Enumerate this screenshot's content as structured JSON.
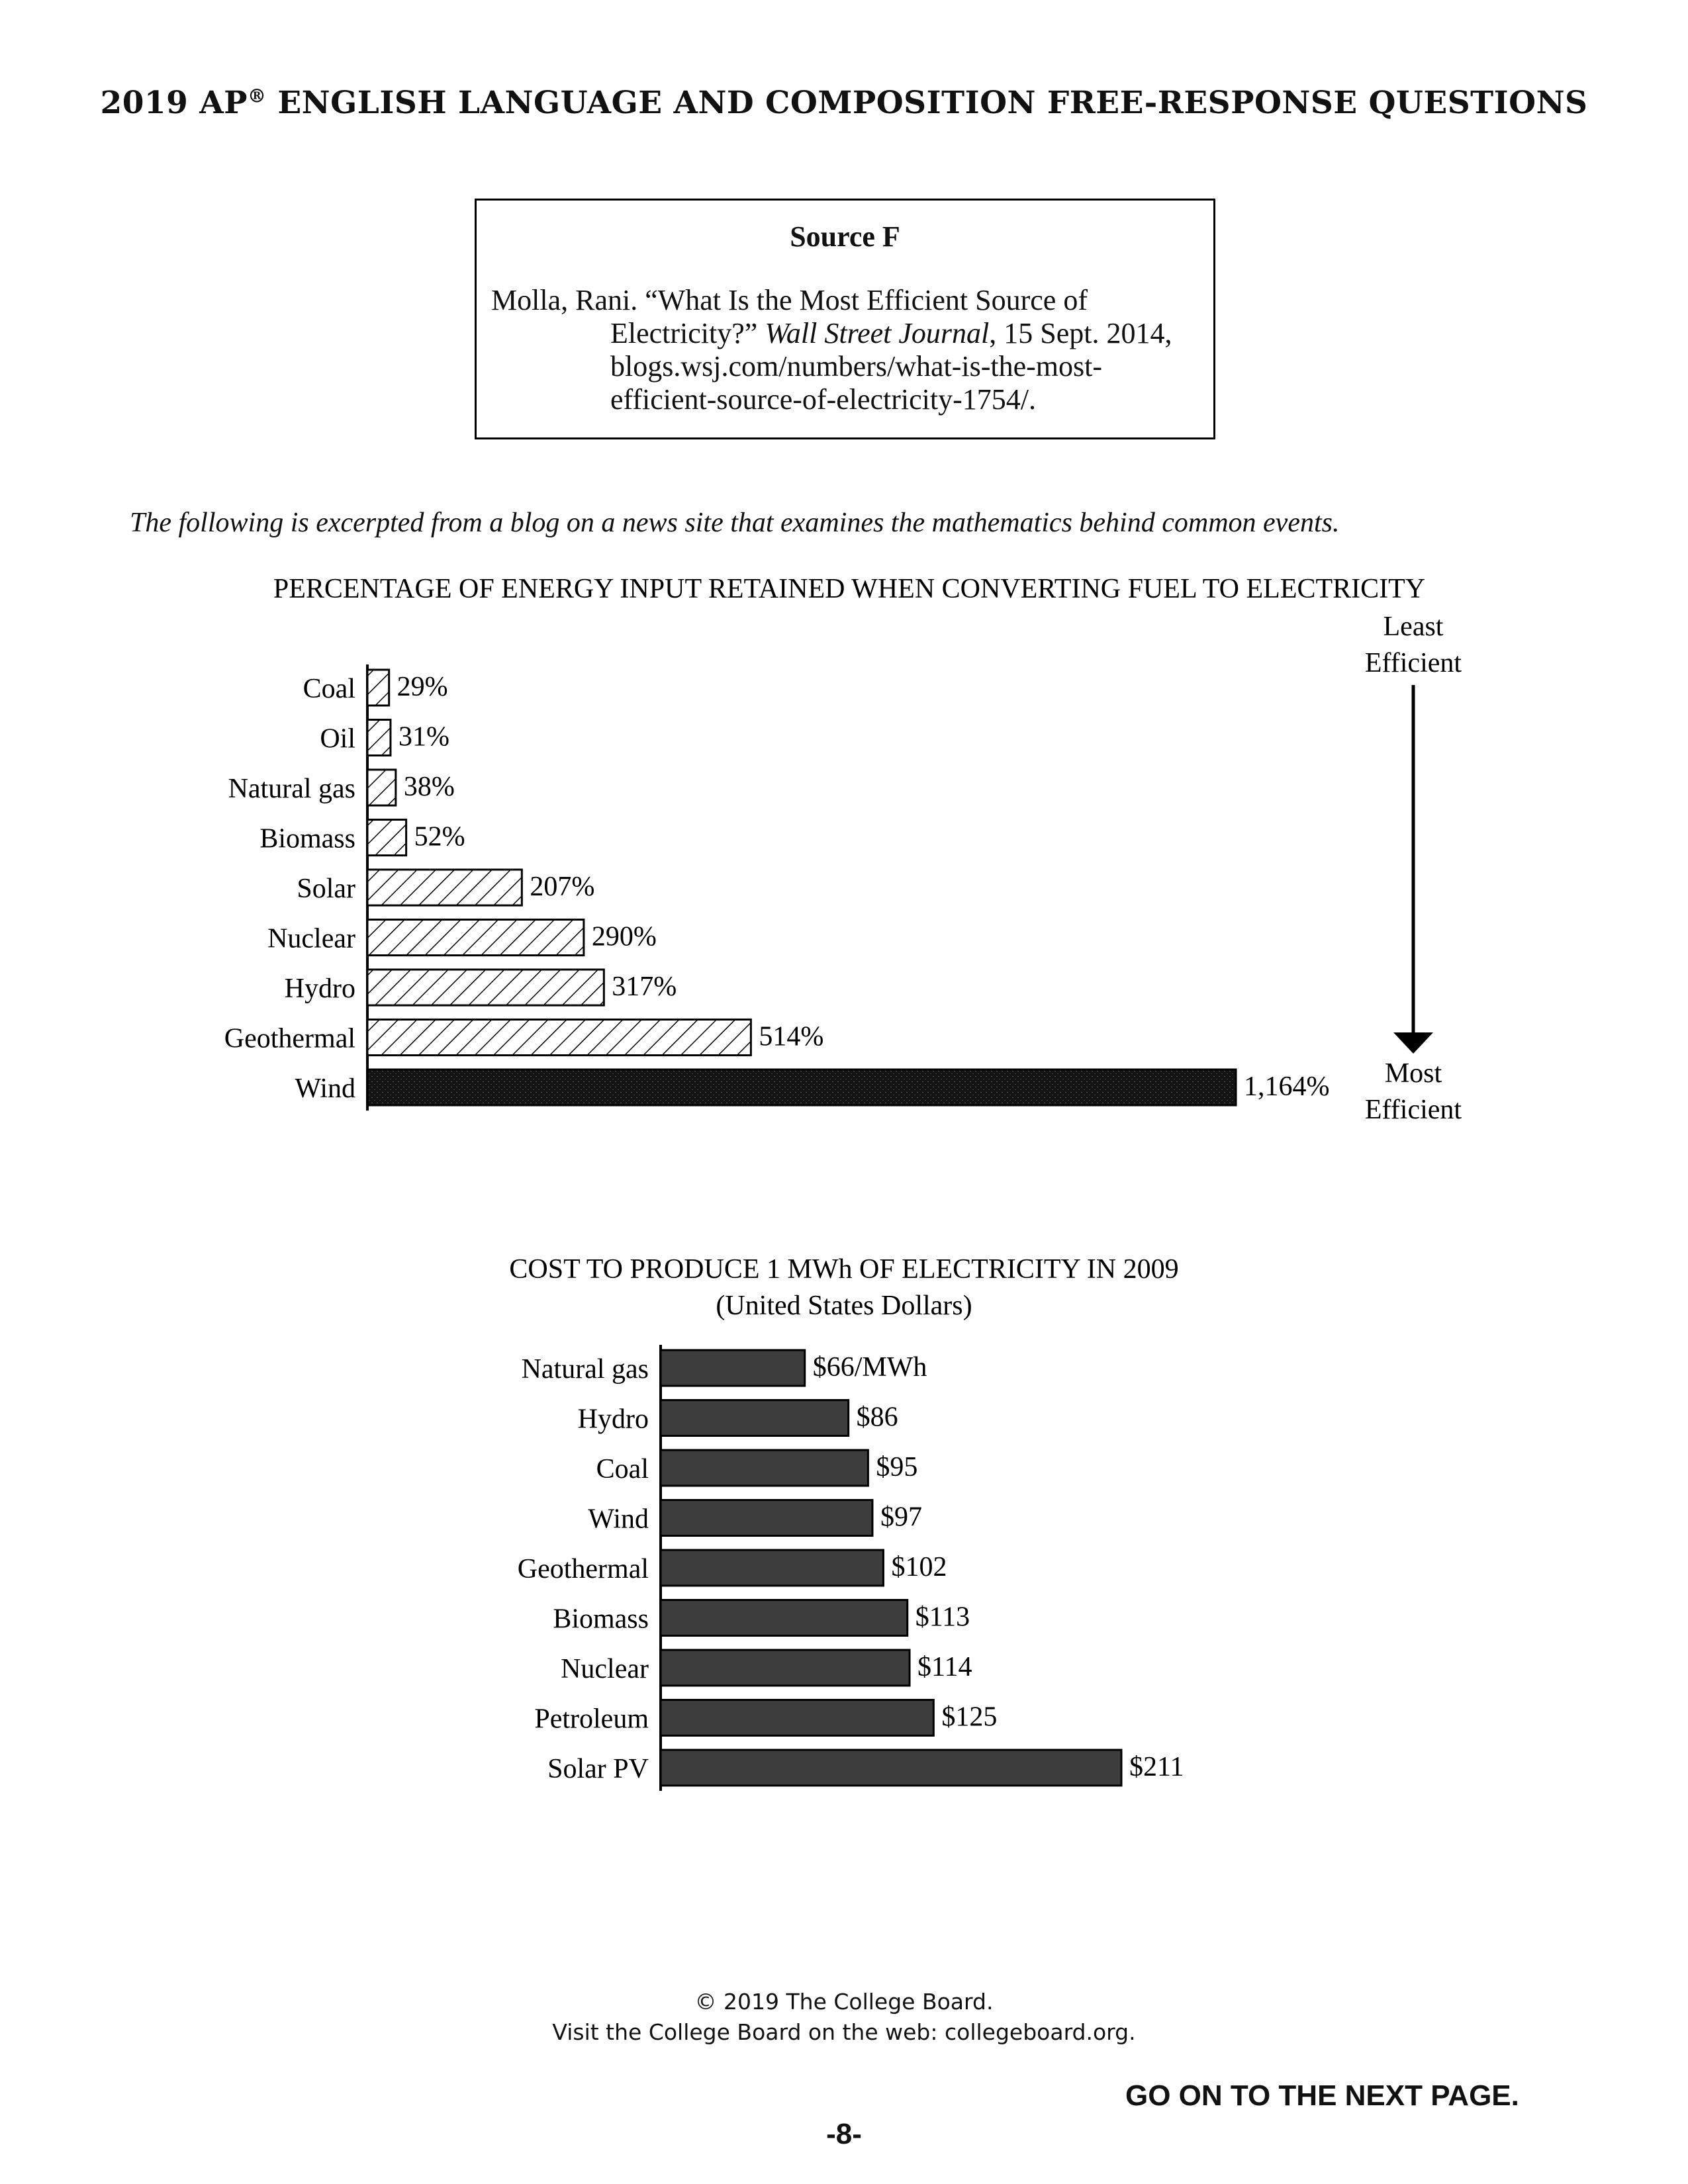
{
  "header": {
    "title_prefix": "2019 AP",
    "title_reg": "®",
    "title_rest": " ENGLISH LANGUAGE AND COMPOSITION FREE-RESPONSE QUESTIONS"
  },
  "source": {
    "title": "Source F",
    "line1": "Molla, Rani. “What Is the Most Efficient Source of",
    "line2_a": "Electricity?” ",
    "line2_italic": "Wall Street Journal",
    "line2_b": ", 15 Sept. 2014,",
    "line3": "blogs.wsj.com/numbers/what-is-the-most-",
    "line4": "efficient-source-of-electricity-1754/."
  },
  "intro": "The following is excerpted from a blog on a news site that examines the mathematics behind common events.",
  "chart_data": [
    {
      "type": "bar",
      "title": "PERCENTAGE OF ENERGY INPUT RETAINED WHEN CONVERTING FUEL TO ELECTRICITY",
      "categories": [
        "Coal",
        "Oil",
        "Natural gas",
        "Biomass",
        "Solar",
        "Nuclear",
        "Hydro",
        "Geothermal",
        "Wind"
      ],
      "values": [
        29,
        31,
        38,
        52,
        207,
        290,
        317,
        514,
        1164
      ],
      "value_labels": [
        "29%",
        "31%",
        "38%",
        "52%",
        "207%",
        "290%",
        "317%",
        "514%",
        "1,164%"
      ],
      "orientation": "horizontal",
      "xlim": [
        0,
        1164
      ],
      "grid": false,
      "annotation": {
        "top_label_1": "Least",
        "top_label_2": "Efficient",
        "bottom_label_1": "Most",
        "bottom_label_2": "Efficient"
      },
      "colors": {
        "hatched": "#000000",
        "highlight": "#1a1a1a"
      }
    },
    {
      "type": "bar",
      "title": "COST TO PRODUCE 1 MWh OF ELECTRICITY IN 2009",
      "subtitle": "(United States Dollars)",
      "categories": [
        "Natural gas",
        "Hydro",
        "Coal",
        "Wind",
        "Geothermal",
        "Biomass",
        "Nuclear",
        "Petroleum",
        "Solar PV"
      ],
      "values": [
        66,
        86,
        95,
        97,
        102,
        113,
        114,
        125,
        211
      ],
      "value_labels": [
        "$66/MWh",
        "$86",
        "$95",
        "$97",
        "$102",
        "$113",
        "$114",
        "$125",
        "$211"
      ],
      "orientation": "horizontal",
      "xlim": [
        0,
        211
      ],
      "grid": false,
      "colors": {
        "bar": "#3d3d3d"
      }
    }
  ],
  "footer": {
    "copyright": "© 2019 The College Board.",
    "visit": "Visit the College Board on the web: collegeboard.org.",
    "next": "GO ON TO THE NEXT PAGE.",
    "page": "-8-"
  }
}
